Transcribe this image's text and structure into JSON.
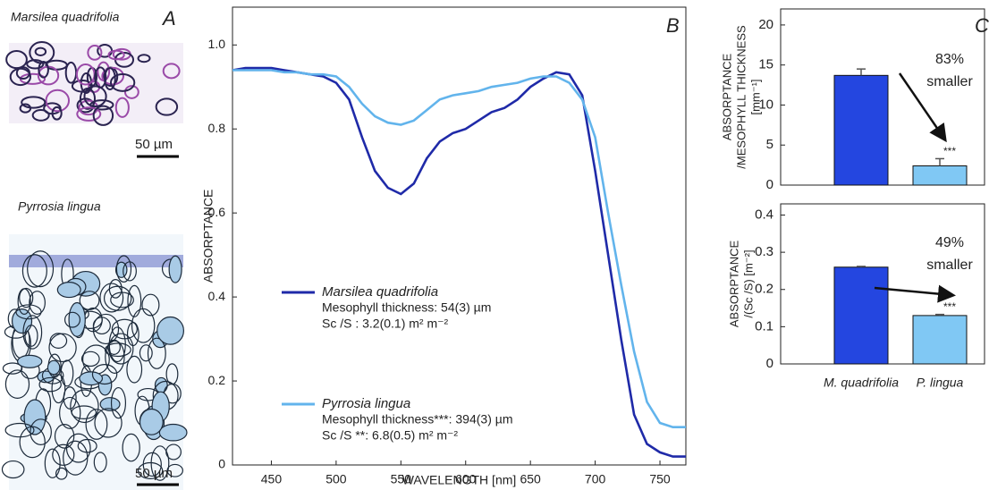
{
  "panel_a": {
    "label": "A",
    "species_1": "Marsilea quadrifolia",
    "scale_1": "50 µm",
    "species_2": "Pyrrosia lingua",
    "scale_2": "50 µm"
  },
  "chart_data": [
    {
      "type": "line",
      "panel": "B",
      "xlabel": "WAVELENGTH [nm]",
      "ylabel": "ABSORPTANCE",
      "x": [
        420,
        430,
        440,
        450,
        460,
        470,
        480,
        490,
        500,
        510,
        520,
        530,
        540,
        550,
        560,
        570,
        580,
        590,
        600,
        610,
        620,
        630,
        640,
        650,
        660,
        670,
        680,
        690,
        700,
        710,
        720,
        730,
        740,
        750,
        760,
        770
      ],
      "xlim": [
        420,
        770
      ],
      "xticks": [
        450,
        500,
        550,
        600,
        650,
        700,
        750
      ],
      "ylim": [
        0,
        1.09
      ],
      "yticks": [
        0,
        0.2,
        0.4,
        0.6,
        0.8,
        {
          "value": 1,
          "label": "1.0"
        }
      ],
      "series": [
        {
          "name": "Marsilea quadrifolia",
          "color": "#1f2aa8",
          "details": [
            "Mesophyll thickness: 54(3) µm",
            "Sc /S : 3.2(0.1) m² m⁻²"
          ],
          "values": [
            0.94,
            0.945,
            0.945,
            0.945,
            0.94,
            0.935,
            0.93,
            0.925,
            0.91,
            0.87,
            0.78,
            0.7,
            0.66,
            0.645,
            0.67,
            0.73,
            0.77,
            0.79,
            0.8,
            0.82,
            0.84,
            0.85,
            0.87,
            0.9,
            0.92,
            0.935,
            0.93,
            0.88,
            0.7,
            0.5,
            0.3,
            0.12,
            0.05,
            0.03,
            0.02,
            0.02
          ]
        },
        {
          "name": "Pyrrosia lingua",
          "color": "#62b4ec",
          "details": [
            "Mesophyll thickness***: 394(3)  µm",
            "Sc /S **: 6.8(0.5) m² m⁻²"
          ],
          "values": [
            0.94,
            0.94,
            0.94,
            0.94,
            0.935,
            0.935,
            0.93,
            0.93,
            0.925,
            0.9,
            0.86,
            0.83,
            0.815,
            0.81,
            0.82,
            0.845,
            0.87,
            0.88,
            0.885,
            0.89,
            0.9,
            0.905,
            0.91,
            0.92,
            0.925,
            0.925,
            0.91,
            0.87,
            0.78,
            0.6,
            0.43,
            0.27,
            0.15,
            0.1,
            0.09,
            0.09
          ]
        }
      ]
    },
    {
      "type": "bar",
      "panel": "C",
      "ylabel": [
        "ABSORPTANCE",
        "/MESOPHYLL THICKNESS",
        "[mm⁻¹]"
      ],
      "categories": [
        null,
        null
      ],
      "values": [
        13.7,
        2.4
      ],
      "errors": [
        0.8,
        0.9
      ],
      "colors": [
        "#2446e0",
        "#80c8f4"
      ],
      "ylim": [
        0,
        22
      ],
      "yticks": [
        0,
        5,
        10,
        15,
        20
      ],
      "annotations": [
        "83%",
        "smaller",
        "***"
      ]
    },
    {
      "type": "bar",
      "ylabel": [
        "ABSORPTANCE",
        "/(Sc /S) [m⁻²]"
      ],
      "categories": [
        "M. quadrifolia",
        "P. lingua"
      ],
      "values": [
        0.26,
        0.13
      ],
      "errors": [
        0.002,
        0.003
      ],
      "colors": [
        "#2446e0",
        "#80c8f4"
      ],
      "ylim": [
        0,
        0.43
      ],
      "yticks": [
        0,
        0.1,
        0.2,
        0.3,
        0.4
      ],
      "annotations": [
        "49%",
        "smaller",
        "***"
      ]
    }
  ]
}
